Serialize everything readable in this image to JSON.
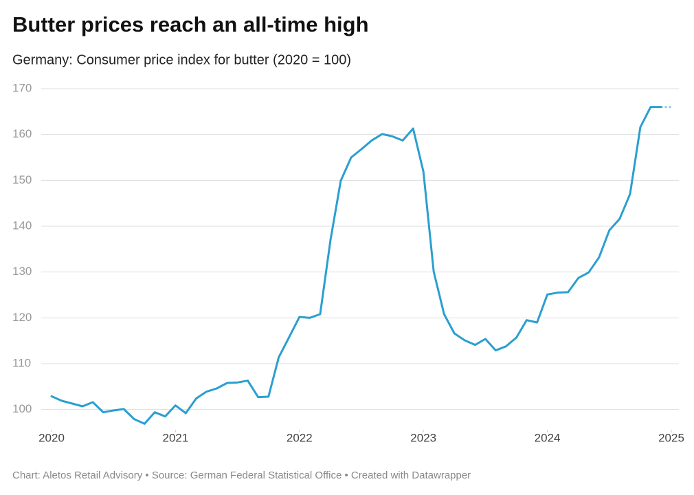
{
  "chart_data": {
    "type": "line",
    "title": "Butter prices reach an all-time high",
    "subtitle": "Germany: Consumer price index for butter (2020 = 100)",
    "footer": "Chart: Aletos Retail Advisory • Source: German Federal Statistical Office • Created with Datawrapper",
    "xlim": [
      2020,
      2025
    ],
    "xticks": [
      2020,
      2021,
      2022,
      2023,
      2024,
      2025
    ],
    "ylim": [
      95,
      170
    ],
    "yticks": [
      100,
      110,
      120,
      130,
      140,
      150,
      160,
      170
    ],
    "grid": true,
    "series": [
      {
        "color": "#2a9fd0",
        "dashed": false,
        "x": [
          2020,
          2020.083,
          2020.167,
          2020.25,
          2020.333,
          2020.417,
          2020.5,
          2020.583,
          2020.667,
          2020.75,
          2020.833,
          2020.917,
          2021,
          2021.083,
          2021.167,
          2021.25,
          2021.333,
          2021.417,
          2021.5,
          2021.583,
          2021.667,
          2021.75,
          2021.833,
          2021.917,
          2022,
          2022.083,
          2022.167,
          2022.25,
          2022.333,
          2022.417,
          2022.5,
          2022.583,
          2022.667,
          2022.75,
          2022.833,
          2022.917,
          2023,
          2023.083,
          2023.167,
          2023.25,
          2023.333,
          2023.417,
          2023.5,
          2023.583,
          2023.667,
          2023.75,
          2023.833,
          2023.917,
          2024,
          2024.083,
          2024.167,
          2024.25,
          2024.333,
          2024.417,
          2024.5,
          2024.583,
          2024.667,
          2024.75,
          2024.833,
          2024.917
        ],
        "values": [
          102.9,
          101.9,
          101.3,
          100.7,
          101.6,
          99.4,
          99.8,
          100.1,
          97.9,
          96.9,
          99.4,
          98.5,
          100.9,
          99.2,
          102.4,
          103.9,
          104.6,
          105.8,
          105.9,
          106.3,
          102.7,
          102.8,
          111.4,
          115.8,
          120.2,
          120.0,
          120.8,
          136.9,
          149.9,
          155.0,
          156.8,
          158.7,
          160.1,
          159.6,
          158.7,
          161.3,
          151.9,
          130.1,
          120.8,
          116.6,
          115.1,
          114.1,
          115.4,
          112.9,
          113.8,
          115.7,
          119.5,
          119.0,
          125.1,
          125.5,
          125.6,
          128.7,
          129.9,
          133.2,
          139.1,
          141.6,
          147.0,
          161.6,
          166.0,
          166.0
        ]
      },
      {
        "color": "#2a9fd0",
        "dashed": true,
        "x": [
          2024.917,
          2025
        ],
        "values": [
          166.0,
          166.0
        ]
      }
    ]
  }
}
